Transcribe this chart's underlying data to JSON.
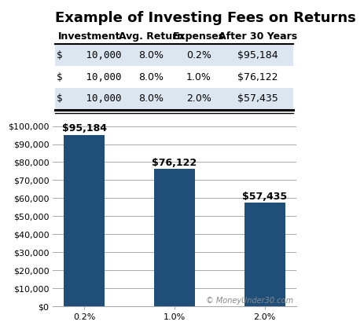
{
  "title": "Example of Investing Fees on Returns",
  "table_headers": [
    "Investment",
    "Avg. Return",
    "Expenses",
    "After 30 Years"
  ],
  "table_rows": [
    [
      "$    10,000",
      "8.0%",
      "0.2%",
      "$95,184"
    ],
    [
      "$    10,000",
      "8.0%",
      "1.0%",
      "$76,122"
    ],
    [
      "$    10,000",
      "8.0%",
      "2.0%",
      "$57,435"
    ]
  ],
  "table_row_colors": [
    "#dce6f1",
    "#ffffff",
    "#dce6f1"
  ],
  "bar_categories": [
    "0.2%",
    "1.0%",
    "2.0%"
  ],
  "bar_values": [
    95184,
    76122,
    57435
  ],
  "bar_labels": [
    "$95,184",
    "$76,122",
    "$57,435"
  ],
  "bar_color": "#1f4e79",
  "ylim": [
    0,
    100000
  ],
  "yticks": [
    0,
    10000,
    20000,
    30000,
    40000,
    50000,
    60000,
    70000,
    80000,
    90000,
    100000
  ],
  "ytick_labels": [
    "$0",
    "$10,000",
    "$20,000",
    "$30,000",
    "$40,000",
    "$50,000",
    "$60,000",
    "$70,000",
    "$80,000",
    "$90,000",
    "$100,000"
  ],
  "watermark": "© MoneyUnder30.com",
  "background_color": "#ffffff",
  "grid_color": "#aaaaaa",
  "title_fontsize": 13,
  "table_header_fontsize": 9,
  "table_cell_fontsize": 9,
  "bar_label_fontsize": 9,
  "axis_tick_fontsize": 8
}
